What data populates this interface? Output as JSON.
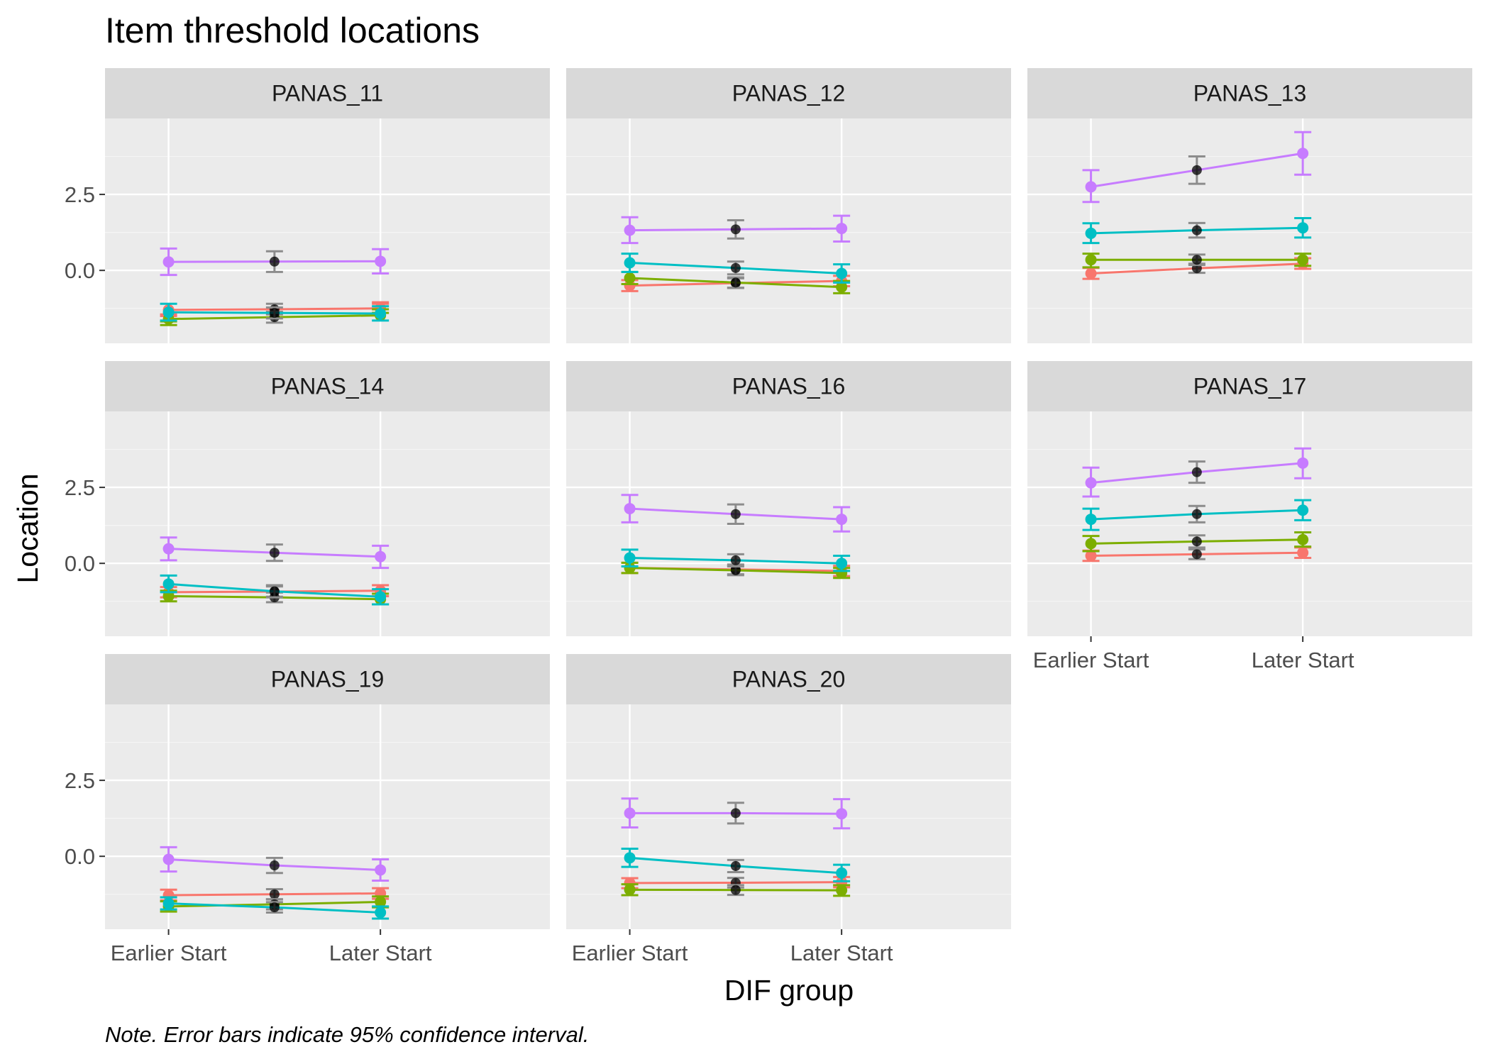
{
  "chart_data": {
    "type": "line",
    "title": "Item threshold locations",
    "xlabel": "DIF group",
    "ylabel": "Location",
    "caption": "Note. Error bars indicate 95% confidence interval.",
    "x_categories": [
      "Earlier Start",
      "Later Start"
    ],
    "y_ticks": [
      "2.5",
      "0.0"
    ],
    "ylim": [
      -2.4,
      5.0
    ],
    "grid": true,
    "legend": "none",
    "series_colors": [
      "#F8766D",
      "#7CAE00",
      "#00BFC4",
      "#C77CFF"
    ],
    "average_color": "#000000",
    "average_errorbar_color": "#8C8C8C",
    "panels": [
      {
        "title": "PANAS_11",
        "series": [
          {
            "values": [
              -1.3,
              -1.25
            ],
            "ci": [
              [
                -1.5,
                -1.1
              ],
              [
                -1.45,
                -1.05
              ]
            ],
            "avg": -1.28,
            "avg_ci": [
              -1.45,
              -1.1
            ]
          },
          {
            "values": [
              -1.6,
              -1.48
            ],
            "ci": [
              [
                -1.8,
                -1.4
              ],
              [
                -1.68,
                -1.28
              ]
            ],
            "avg": -1.54,
            "avg_ci": [
              -1.72,
              -1.36
            ]
          },
          {
            "values": [
              -1.38,
              -1.42
            ],
            "ci": [
              [
                -1.1,
                -1.18
              ],
              [
                -1.65,
                -1.65
              ]
            ],
            "avg": -1.4,
            "avg_ci": [
              -1.58,
              -1.22
            ]
          },
          {
            "values": [
              0.28,
              0.3
            ],
            "ci": [
              [
                -0.15,
                -0.1
              ],
              [
                0.72,
                0.7
              ]
            ],
            "avg": 0.29,
            "avg_ci": [
              -0.05,
              0.63
            ]
          }
        ]
      },
      {
        "title": "PANAS_12",
        "series": [
          {
            "values": [
              -0.5,
              -0.35
            ],
            "ci": [
              [
                -0.68,
                -0.52
              ],
              [
                -0.32,
                -0.18
              ]
            ],
            "avg": -0.42,
            "avg_ci": [
              -0.58,
              -0.26
            ]
          },
          {
            "values": [
              -0.25,
              -0.55
            ],
            "ci": [
              [
                -0.45,
                -0.75
              ],
              [
                -0.05,
                -0.35
              ]
            ],
            "avg": -0.4,
            "avg_ci": [
              -0.57,
              -0.23
            ]
          },
          {
            "values": [
              0.25,
              -0.1
            ],
            "ci": [
              [
                -0.05,
                -0.4
              ],
              [
                0.55,
                0.2
              ]
            ],
            "avg": 0.08,
            "avg_ci": [
              -0.13,
              0.29
            ]
          },
          {
            "values": [
              1.32,
              1.38
            ],
            "ci": [
              [
                0.9,
                0.95
              ],
              [
                1.75,
                1.8
              ]
            ],
            "avg": 1.35,
            "avg_ci": [
              1.05,
              1.65
            ]
          }
        ]
      },
      {
        "title": "PANAS_13",
        "series": [
          {
            "values": [
              -0.1,
              0.22
            ],
            "ci": [
              [
                -0.28,
                0.05
              ],
              [
                0.08,
                0.4
              ]
            ],
            "avg": 0.07,
            "avg_ci": [
              -0.08,
              0.22
            ]
          },
          {
            "values": [
              0.35,
              0.35
            ],
            "ci": [
              [
                0.1,
                0.15
              ],
              [
                0.55,
                0.55
              ]
            ],
            "avg": 0.35,
            "avg_ci": [
              0.18,
              0.52
            ]
          },
          {
            "values": [
              1.22,
              1.4
            ],
            "ci": [
              [
                0.9,
                1.08
              ],
              [
                1.55,
                1.72
              ]
            ],
            "avg": 1.32,
            "avg_ci": [
              1.08,
              1.56
            ]
          },
          {
            "values": [
              2.75,
              3.85
            ],
            "ci": [
              [
                2.25,
                3.15
              ],
              [
                3.3,
                4.55
              ]
            ],
            "avg": 3.3,
            "avg_ci": [
              2.85,
              3.75
            ]
          }
        ]
      },
      {
        "title": "PANAS_14",
        "series": [
          {
            "values": [
              -0.95,
              -0.9
            ],
            "ci": [
              [
                -1.12,
                -1.08
              ],
              [
                -0.78,
                -0.72
              ]
            ],
            "avg": -0.93,
            "avg_ci": [
              -1.1,
              -0.76
            ]
          },
          {
            "values": [
              -1.08,
              -1.18
            ],
            "ci": [
              [
                -1.25,
                -1.35
              ],
              [
                -0.9,
                -1.0
              ]
            ],
            "avg": -1.12,
            "avg_ci": [
              -1.28,
              -0.96
            ]
          },
          {
            "values": [
              -0.68,
              -1.1
            ],
            "ci": [
              [
                -0.95,
                -1.35
              ],
              [
                -0.4,
                -0.85
              ]
            ],
            "avg": -0.92,
            "avg_ci": [
              -1.12,
              -0.72
            ]
          },
          {
            "values": [
              0.48,
              0.22
            ],
            "ci": [
              [
                0.1,
                -0.15
              ],
              [
                0.85,
                0.58
              ]
            ],
            "avg": 0.35,
            "avg_ci": [
              0.08,
              0.62
            ]
          }
        ]
      },
      {
        "title": "PANAS_16",
        "series": [
          {
            "values": [
              -0.15,
              -0.25
            ],
            "ci": [
              [
                -0.32,
                -0.42
              ],
              [
                0.02,
                -0.08
              ]
            ],
            "avg": -0.2,
            "avg_ci": [
              -0.36,
              -0.04
            ]
          },
          {
            "values": [
              -0.15,
              -0.32
            ],
            "ci": [
              [
                -0.32,
                -0.48
              ],
              [
                0.02,
                -0.15
              ]
            ],
            "avg": -0.23,
            "avg_ci": [
              -0.39,
              -0.07
            ]
          },
          {
            "values": [
              0.18,
              0.0
            ],
            "ci": [
              [
                -0.1,
                -0.25
              ],
              [
                0.45,
                0.25
              ]
            ],
            "avg": 0.1,
            "avg_ci": [
              -0.1,
              0.3
            ]
          },
          {
            "values": [
              1.8,
              1.45
            ],
            "ci": [
              [
                1.35,
                1.05
              ],
              [
                2.25,
                1.85
              ]
            ],
            "avg": 1.62,
            "avg_ci": [
              1.3,
              1.94
            ]
          }
        ]
      },
      {
        "title": "PANAS_17",
        "series": [
          {
            "values": [
              0.25,
              0.35
            ],
            "ci": [
              [
                0.08,
                0.18
              ],
              [
                0.42,
                0.52
              ]
            ],
            "avg": 0.3,
            "avg_ci": [
              0.14,
              0.46
            ]
          },
          {
            "values": [
              0.65,
              0.78
            ],
            "ci": [
              [
                0.4,
                0.55
              ],
              [
                0.9,
                1.02
              ]
            ],
            "avg": 0.72,
            "avg_ci": [
              0.52,
              0.92
            ]
          },
          {
            "values": [
              1.45,
              1.75
            ],
            "ci": [
              [
                1.1,
                1.42
              ],
              [
                1.8,
                2.08
              ]
            ],
            "avg": 1.62,
            "avg_ci": [
              1.35,
              1.89
            ]
          },
          {
            "values": [
              2.65,
              3.3
            ],
            "ci": [
              [
                2.2,
                2.8
              ],
              [
                3.15,
                3.78
              ]
            ],
            "avg": 3.0,
            "avg_ci": [
              2.65,
              3.35
            ]
          }
        ]
      },
      {
        "title": "PANAS_19",
        "series": [
          {
            "values": [
              -1.28,
              -1.22
            ],
            "ci": [
              [
                -1.45,
                -1.4
              ],
              [
                -1.1,
                -1.05
              ]
            ],
            "avg": -1.25,
            "avg_ci": [
              -1.42,
              -1.08
            ]
          },
          {
            "values": [
              -1.65,
              -1.5
            ],
            "ci": [
              [
                -1.82,
                -1.68
              ],
              [
                -1.48,
                -1.32
              ]
            ],
            "avg": -1.58,
            "avg_ci": [
              -1.75,
              -1.41
            ]
          },
          {
            "values": [
              -1.55,
              -1.85
            ],
            "ci": [
              [
                -1.75,
                -2.05
              ],
              [
                -1.35,
                -1.65
              ]
            ],
            "avg": -1.68,
            "avg_ci": [
              -1.85,
              -1.51
            ]
          },
          {
            "values": [
              -0.1,
              -0.45
            ],
            "ci": [
              [
                -0.5,
                -0.8
              ],
              [
                0.3,
                -0.1
              ]
            ],
            "avg": -0.3,
            "avg_ci": [
              -0.55,
              -0.05
            ]
          }
        ]
      },
      {
        "title": "PANAS_20",
        "series": [
          {
            "values": [
              -0.88,
              -0.85
            ],
            "ci": [
              [
                -1.05,
                -1.02
              ],
              [
                -0.72,
                -0.68
              ]
            ],
            "avg": -0.87,
            "avg_ci": [
              -1.03,
              -0.71
            ]
          },
          {
            "values": [
              -1.1,
              -1.12
            ],
            "ci": [
              [
                -1.28,
                -1.3
              ],
              [
                -0.92,
                -0.95
              ]
            ],
            "avg": -1.11,
            "avg_ci": [
              -1.27,
              -0.95
            ]
          },
          {
            "values": [
              -0.05,
              -0.55
            ],
            "ci": [
              [
                -0.35,
                -0.82
              ],
              [
                0.25,
                -0.28
              ]
            ],
            "avg": -0.32,
            "avg_ci": [
              -0.52,
              -0.12
            ]
          },
          {
            "values": [
              1.42,
              1.4
            ],
            "ci": [
              [
                0.95,
                0.92
              ],
              [
                1.9,
                1.88
              ]
            ],
            "avg": 1.42,
            "avg_ci": [
              1.08,
              1.76
            ]
          }
        ]
      }
    ]
  }
}
